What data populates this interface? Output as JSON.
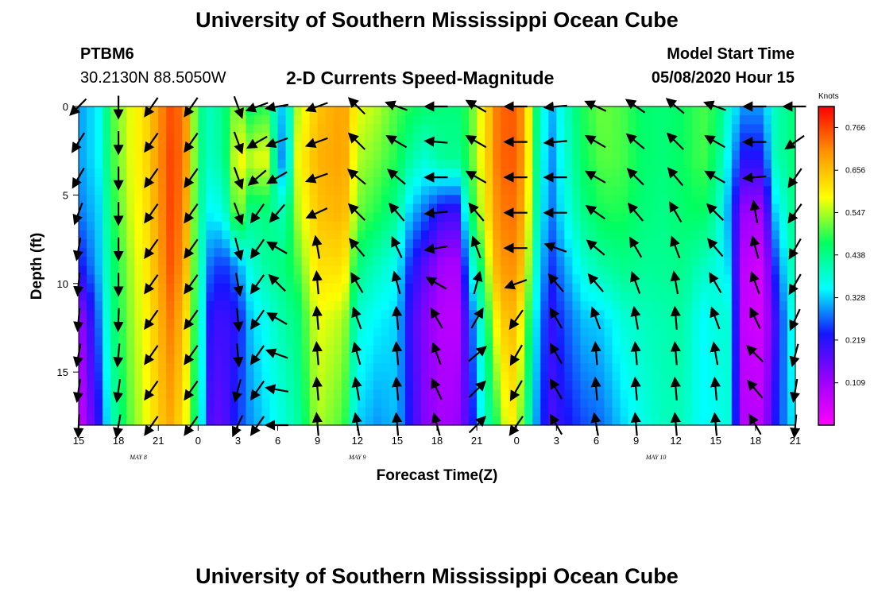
{
  "page": {
    "title_top": "University of Southern Mississippi Ocean Cube",
    "title_bottom": "University of Southern Mississippi Ocean Cube",
    "station": "PTBM6",
    "location": "30.2130N 88.5050W",
    "subtitle": "2-D Currents Speed-Magnitude",
    "model_start_label": "Model Start Time",
    "model_start_value": "05/08/2020 Hour 15"
  },
  "chart_data": {
    "type": "heatmap",
    "title": "2-D Currents Speed-Magnitude",
    "xlabel": "Forecast Time(Z)",
    "ylabel": "Depth (ft)",
    "x_ticks": [
      "15",
      "18",
      "21",
      "0",
      "3",
      "6",
      "9",
      "12",
      "15",
      "18",
      "21",
      "0",
      "3",
      "6",
      "9",
      "12",
      "15",
      "18",
      "21"
    ],
    "x_tick_hours": [
      0,
      3,
      6,
      9,
      12,
      15,
      18,
      21,
      24,
      27,
      30,
      33,
      36,
      39,
      42,
      45,
      48,
      51,
      54
    ],
    "date_labels": [
      {
        "text": "MAY 8",
        "hour": 4.5
      },
      {
        "text": "MAY 9",
        "hour": 21
      },
      {
        "text": "MAY 10",
        "hour": 43.5
      }
    ],
    "x_range_hours": [
      0,
      54
    ],
    "y_ticks": [
      0,
      5,
      10,
      15
    ],
    "y_range_ft": [
      0,
      18
    ],
    "colorbar": {
      "unit": "Knots",
      "range": [
        0.0,
        0.82
      ],
      "labels": [
        "0.766",
        "0.656",
        "0.547",
        "0.438",
        "0.328",
        "0.219",
        "0.109"
      ],
      "label_values": [
        0.766,
        0.656,
        0.547,
        0.438,
        0.328,
        0.219,
        0.109
      ],
      "colors": [
        "#ff00ff",
        "#9a00ff",
        "#1515ff",
        "#00ffff",
        "#00ff60",
        "#ffff00",
        "#ff9400",
        "#ff0000"
      ]
    },
    "speed_profiles": [
      {
        "t": 0.0,
        "s": [
          0.3,
          0.3,
          0.28,
          0.22,
          0.1,
          0.05
        ]
      },
      {
        "t": 1.5,
        "s": [
          0.35,
          0.35,
          0.33,
          0.32,
          0.28,
          0.22
        ]
      },
      {
        "t": 2.5,
        "s": [
          0.5,
          0.49,
          0.47,
          0.45,
          0.44,
          0.4
        ]
      },
      {
        "t": 4.0,
        "s": [
          0.58,
          0.58,
          0.57,
          0.55,
          0.54,
          0.52
        ]
      },
      {
        "t": 5.0,
        "s": [
          0.62,
          0.62,
          0.61,
          0.6,
          0.59,
          0.57
        ]
      },
      {
        "t": 6.0,
        "s": [
          0.7,
          0.7,
          0.69,
          0.68,
          0.66,
          0.64
        ]
      },
      {
        "t": 7.0,
        "s": [
          0.76,
          0.77,
          0.77,
          0.76,
          0.73,
          0.68
        ]
      },
      {
        "t": 8.0,
        "s": [
          0.72,
          0.72,
          0.7,
          0.68,
          0.64,
          0.6
        ]
      },
      {
        "t": 9.0,
        "s": [
          0.45,
          0.45,
          0.44,
          0.44,
          0.43,
          0.42
        ]
      },
      {
        "t": 10.0,
        "s": [
          0.4,
          0.39,
          0.34,
          0.26,
          0.2,
          0.16
        ]
      },
      {
        "t": 11.0,
        "s": [
          0.45,
          0.44,
          0.38,
          0.25,
          0.2,
          0.18
        ]
      },
      {
        "t": 12.0,
        "s": [
          0.55,
          0.6,
          0.55,
          0.3,
          0.22,
          0.25
        ]
      },
      {
        "t": 13.0,
        "s": [
          0.45,
          0.55,
          0.43,
          0.38,
          0.33,
          0.3
        ]
      },
      {
        "t": 14.0,
        "s": [
          0.5,
          0.6,
          0.45,
          0.42,
          0.36,
          0.33
        ]
      },
      {
        "t": 15.5,
        "s": [
          0.3,
          0.25,
          0.4,
          0.45,
          0.42,
          0.38
        ]
      },
      {
        "t": 16.5,
        "s": [
          0.55,
          0.58,
          0.55,
          0.5,
          0.45,
          0.42
        ]
      },
      {
        "t": 18.0,
        "s": [
          0.65,
          0.67,
          0.65,
          0.62,
          0.58,
          0.55
        ]
      },
      {
        "t": 20.0,
        "s": [
          0.69,
          0.69,
          0.67,
          0.62,
          0.55,
          0.5
        ]
      },
      {
        "t": 21.0,
        "s": [
          0.58,
          0.55,
          0.52,
          0.45,
          0.38,
          0.33
        ]
      },
      {
        "t": 22.5,
        "s": [
          0.55,
          0.52,
          0.48,
          0.4,
          0.35,
          0.3
        ]
      },
      {
        "t": 24.0,
        "s": [
          0.5,
          0.48,
          0.43,
          0.36,
          0.33,
          0.32
        ]
      },
      {
        "t": 25.0,
        "s": [
          0.48,
          0.42,
          0.32,
          0.24,
          0.2,
          0.22
        ]
      },
      {
        "t": 26.0,
        "s": [
          0.46,
          0.38,
          0.28,
          0.18,
          0.14,
          0.14
        ]
      },
      {
        "t": 27.5,
        "s": [
          0.45,
          0.43,
          0.2,
          0.1,
          0.08,
          0.1
        ]
      },
      {
        "t": 28.5,
        "s": [
          0.45,
          0.43,
          0.2,
          0.1,
          0.08,
          0.12
        ]
      },
      {
        "t": 29.5,
        "s": [
          0.5,
          0.5,
          0.45,
          0.35,
          0.25,
          0.2
        ]
      },
      {
        "t": 30.5,
        "s": [
          0.6,
          0.6,
          0.58,
          0.5,
          0.42,
          0.38
        ]
      },
      {
        "t": 31.5,
        "s": [
          0.72,
          0.72,
          0.7,
          0.67,
          0.6,
          0.48
        ]
      },
      {
        "t": 32.5,
        "s": [
          0.76,
          0.76,
          0.74,
          0.72,
          0.68,
          0.62
        ]
      },
      {
        "t": 33.5,
        "s": [
          0.7,
          0.7,
          0.68,
          0.65,
          0.58,
          0.5
        ]
      },
      {
        "t": 34.5,
        "s": [
          0.45,
          0.44,
          0.42,
          0.38,
          0.34,
          0.3
        ]
      },
      {
        "t": 35.5,
        "s": [
          0.3,
          0.28,
          0.27,
          0.24,
          0.2,
          0.18
        ]
      },
      {
        "t": 36.5,
        "s": [
          0.38,
          0.37,
          0.35,
          0.3,
          0.26,
          0.22
        ]
      },
      {
        "t": 38.0,
        "s": [
          0.48,
          0.47,
          0.44,
          0.38,
          0.32,
          0.26
        ]
      },
      {
        "t": 39.5,
        "s": [
          0.52,
          0.51,
          0.48,
          0.42,
          0.33,
          0.28
        ]
      },
      {
        "t": 41.0,
        "s": [
          0.5,
          0.5,
          0.48,
          0.44,
          0.38,
          0.33
        ]
      },
      {
        "t": 42.5,
        "s": [
          0.46,
          0.46,
          0.45,
          0.43,
          0.4,
          0.37
        ]
      },
      {
        "t": 44.0,
        "s": [
          0.45,
          0.45,
          0.44,
          0.43,
          0.41,
          0.4
        ]
      },
      {
        "t": 45.5,
        "s": [
          0.47,
          0.47,
          0.46,
          0.44,
          0.42,
          0.4
        ]
      },
      {
        "t": 47.0,
        "s": [
          0.5,
          0.5,
          0.47,
          0.4,
          0.35,
          0.35
        ]
      },
      {
        "t": 48.0,
        "s": [
          0.48,
          0.46,
          0.42,
          0.38,
          0.38,
          0.36
        ]
      },
      {
        "t": 49.0,
        "s": [
          0.38,
          0.34,
          0.3,
          0.33,
          0.38,
          0.38
        ]
      },
      {
        "t": 50.0,
        "s": [
          0.3,
          0.22,
          0.12,
          0.08,
          0.07,
          0.09
        ]
      },
      {
        "t": 51.5,
        "s": [
          0.3,
          0.22,
          0.1,
          0.05,
          0.05,
          0.08
        ]
      },
      {
        "t": 52.5,
        "s": [
          0.4,
          0.4,
          0.33,
          0.25,
          0.2,
          0.23
        ]
      },
      {
        "t": 54.0,
        "s": [
          0.46,
          0.46,
          0.45,
          0.44,
          0.4,
          0.36
        ]
      }
    ],
    "profile_depths_ft": [
      0,
      3,
      6,
      9,
      12,
      18
    ],
    "arrow_rows_ft": [
      0,
      2,
      4,
      6,
      8,
      10,
      12,
      14,
      16,
      18
    ],
    "arrow_columns": [
      {
        "t": 0.0,
        "dir": [
          225,
          212,
          210,
          200,
          190,
          185,
          185,
          190,
          188,
          182
        ]
      },
      {
        "t": 3.0,
        "dir": [
          180,
          180,
          180,
          180,
          180,
          180,
          182,
          185,
          188,
          190
        ]
      },
      {
        "t": 5.5,
        "dir": [
          215,
          215,
          215,
          215,
          215,
          215,
          215,
          215,
          215,
          215
        ]
      },
      {
        "t": 8.5,
        "dir": [
          215,
          215,
          215,
          215,
          215,
          215,
          215,
          215,
          215,
          215
        ]
      },
      {
        "t": 12.0,
        "dir": [
          160,
          160,
          160,
          160,
          165,
          170,
          175,
          175,
          195,
          205
        ]
      },
      {
        "t": 13.5,
        "dir": [
          250,
          240,
          230,
          215,
          215,
          215,
          215,
          215,
          215,
          215
        ]
      },
      {
        "t": 15.0,
        "dir": [
          260,
          250,
          240,
          220,
          300,
          315,
          300,
          290,
          280,
          270
        ]
      },
      {
        "t": 18.0,
        "dir": [
          250,
          250,
          250,
          245,
          350,
          355,
          355,
          355,
          355,
          355
        ]
      },
      {
        "t": 21.0,
        "dir": [
          315,
          315,
          310,
          315,
          320,
          330,
          340,
          345,
          350,
          350
        ]
      },
      {
        "t": 24.0,
        "dir": [
          290,
          300,
          310,
          320,
          335,
          345,
          355,
          355,
          355,
          355
        ]
      },
      {
        "t": 27.0,
        "dir": [
          270,
          275,
          270,
          265,
          260,
          300,
          330,
          340,
          335,
          345
        ]
      },
      {
        "t": 30.0,
        "dir": [
          300,
          300,
          300,
          320,
          340,
          15,
          30,
          50,
          45,
          45
        ]
      },
      {
        "t": 33.0,
        "dir": [
          270,
          270,
          270,
          270,
          270,
          250,
          215,
          210,
          210,
          215
        ]
      },
      {
        "t": 36.0,
        "dir": [
          265,
          265,
          270,
          270,
          290,
          320,
          330,
          330,
          330,
          330
        ]
      },
      {
        "t": 39.0,
        "dir": [
          295,
          300,
          300,
          305,
          310,
          320,
          340,
          355,
          355,
          350
        ]
      },
      {
        "t": 42.0,
        "dir": [
          305,
          310,
          315,
          320,
          330,
          340,
          350,
          355,
          355,
          355
        ]
      },
      {
        "t": 45.0,
        "dir": [
          310,
          315,
          320,
          330,
          340,
          350,
          355,
          355,
          355,
          355
        ]
      },
      {
        "t": 48.0,
        "dir": [
          290,
          300,
          300,
          315,
          320,
          330,
          340,
          350,
          355,
          355
        ]
      },
      {
        "t": 51.0,
        "dir": [
          270,
          270,
          265,
          350,
          345,
          340,
          335,
          315,
          320,
          330
        ]
      },
      {
        "t": 54.0,
        "dir": [
          270,
          235,
          215,
          215,
          210,
          210,
          205,
          195,
          190,
          185
        ]
      }
    ]
  }
}
